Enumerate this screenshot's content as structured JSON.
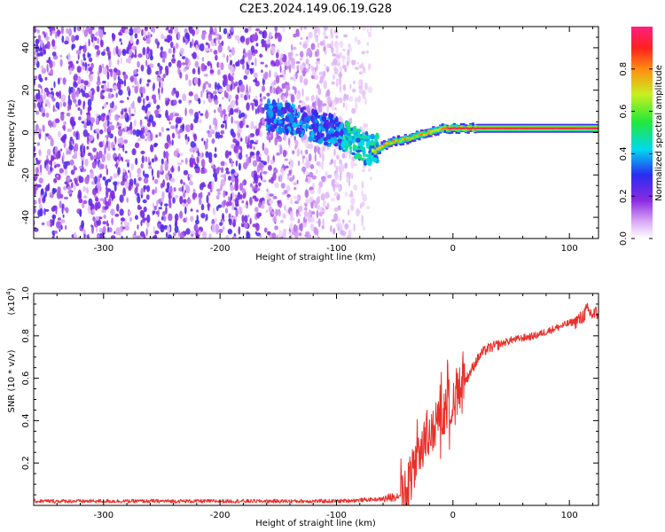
{
  "chart_data": [
    {
      "type": "heatmap",
      "title": "C2E3.2024.149.06.19.G28",
      "xlabel": "Height of straight line (km)",
      "ylabel": "Frequency (Hz)",
      "xlim": [
        -360,
        125
      ],
      "ylim": [
        -50,
        50
      ],
      "xticks": [
        -300,
        -200,
        -100,
        0,
        100
      ],
      "yticks": [
        -40,
        -20,
        0,
        20,
        40
      ],
      "colorbar": {
        "label": "Normalized spectral amplitude",
        "range": [
          0.0,
          1.0
        ],
        "ticks": [
          "0.0",
          "0.2",
          "0.4",
          "0.6",
          "0.8"
        ],
        "colormap": "rainbow: white → violet → blue → cyan → green → yellow → red → pink"
      },
      "regions": [
        {
          "x_range": [
            -360,
            -160
          ],
          "description": "broadband noise across all frequencies, amplitude ~0.1-0.3"
        },
        {
          "x_range": [
            -160,
            -70
          ],
          "description": "noise fading, concentrated line near 0 Hz, amplitude ~0.3-0.5"
        },
        {
          "x_range": [
            -70,
            -10
          ],
          "description": "signal line rising from -8 Hz to 0 Hz, amplitude ~0.5-0.9"
        },
        {
          "x_range": [
            -10,
            125
          ],
          "description": "steady tone near +2 Hz, amplitude ~0.8-1.0"
        }
      ],
      "signal_track": {
        "x": [
          -160,
          -130,
          -100,
          -80,
          -68,
          -60,
          -50,
          -40,
          -30,
          -20,
          -10,
          0,
          20,
          60,
          100,
          125
        ],
        "y": [
          8,
          5,
          0,
          -6,
          -9,
          -6,
          -4,
          -3,
          -1,
          0,
          2,
          2,
          2,
          2,
          2,
          2
        ]
      }
    },
    {
      "type": "line",
      "title": "",
      "xlabel": "Height of straight line (km)",
      "ylabel": "SNR (10 * v/v)",
      "y_multiplier_label": "(x10",
      "y_multiplier_exp": "4",
      "y_multiplier_close": ")",
      "xlim": [
        -360,
        125
      ],
      "ylim": [
        0.0,
        1.0
      ],
      "xticks": [
        -300,
        -200,
        -100,
        0,
        100
      ],
      "yticks": [
        "0.2",
        "0.4",
        "0.6",
        "0.8",
        "1.0"
      ],
      "color": "#e8302a",
      "series": [
        {
          "x": [
            -360,
            -300,
            -250,
            -200,
            -150,
            -100,
            -80,
            -60,
            -50,
            -45,
            -40,
            -35,
            -30,
            -25,
            -20,
            -15,
            -10,
            -5,
            0,
            5,
            10,
            15,
            20,
            25,
            30,
            40,
            50,
            60,
            70,
            80,
            90,
            100,
            110,
            115,
            120,
            125
          ],
          "y": [
            0.02,
            0.02,
            0.02,
            0.02,
            0.02,
            0.02,
            0.025,
            0.03,
            0.04,
            0.05,
            0.07,
            0.15,
            0.25,
            0.3,
            0.33,
            0.37,
            0.42,
            0.47,
            0.5,
            0.54,
            0.58,
            0.63,
            0.68,
            0.72,
            0.74,
            0.76,
            0.78,
            0.79,
            0.8,
            0.82,
            0.84,
            0.86,
            0.88,
            0.92,
            0.9,
            0.91
          ]
        }
      ]
    }
  ]
}
